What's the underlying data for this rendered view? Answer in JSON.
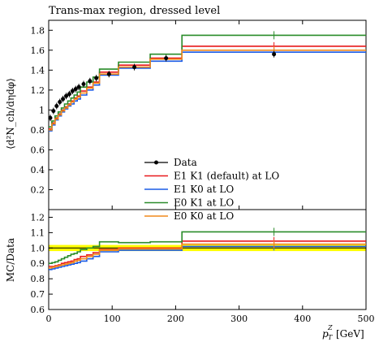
{
  "chart_data": {
    "title": "Trans-max region, dressed level",
    "type": "line",
    "x_label_main": "p",
    "x_label_sub": "T",
    "x_label_sup": "Z",
    "x_label_unit": "[GeV]",
    "y_label_top": "⟨d²N_ch/dηdφ⟩",
    "y_label_bottom": "MC/Data",
    "x_range": [
      0,
      500
    ],
    "x_ticks": [
      0,
      100,
      200,
      300,
      400,
      500
    ],
    "top_panel": {
      "ylim": [
        0,
        1.9
      ],
      "y_ticks": [
        0.2,
        0.4,
        0.6,
        0.8,
        1,
        1.2,
        1.4,
        1.6,
        1.8
      ]
    },
    "bottom_panel": {
      "ylim": [
        0.6,
        1.25
      ],
      "y_ticks": [
        0.6,
        0.7,
        0.8,
        0.9,
        1.0,
        1.1,
        1.2
      ],
      "band": [
        0.98,
        1.02
      ]
    },
    "bin_edges": [
      0,
      5,
      10,
      15,
      20,
      25,
      30,
      35,
      40,
      45,
      50,
      60,
      70,
      80,
      110,
      160,
      210,
      500
    ],
    "data": {
      "name": "Data",
      "x": [
        2.5,
        7.5,
        12.5,
        17.5,
        22.5,
        27.5,
        32.5,
        37.5,
        42.5,
        47.5,
        55,
        65,
        75,
        95,
        135,
        185,
        355
      ],
      "y": [
        0.92,
        0.99,
        1.04,
        1.08,
        1.11,
        1.14,
        1.16,
        1.19,
        1.21,
        1.23,
        1.26,
        1.29,
        1.32,
        1.36,
        1.43,
        1.52,
        1.56
      ]
    },
    "series": [
      {
        "name": "E1 K1 (default) at LO",
        "color": "#e8191c",
        "y": [
          0.81,
          0.87,
          0.92,
          0.96,
          1.0,
          1.03,
          1.06,
          1.09,
          1.12,
          1.14,
          1.19,
          1.23,
          1.28,
          1.38,
          1.45,
          1.52,
          1.64
        ],
        "ratio": [
          0.88,
          0.88,
          0.885,
          0.89,
          0.9,
          0.905,
          0.91,
          0.915,
          0.925,
          0.93,
          0.945,
          0.955,
          0.97,
          0.99,
          1.0,
          1.0,
          1.045
        ]
      },
      {
        "name": "E1 K0 at LO",
        "color": "#1a5be6",
        "y": [
          0.79,
          0.85,
          0.9,
          0.94,
          0.98,
          1.01,
          1.04,
          1.06,
          1.09,
          1.11,
          1.15,
          1.2,
          1.25,
          1.35,
          1.42,
          1.49,
          1.58
        ],
        "ratio": [
          0.86,
          0.865,
          0.87,
          0.875,
          0.88,
          0.885,
          0.89,
          0.895,
          0.9,
          0.905,
          0.915,
          0.93,
          0.945,
          0.975,
          0.985,
          0.985,
          1.01
        ]
      },
      {
        "name": "E0 K1 at LO",
        "color": "#2a8c2a",
        "y": [
          0.83,
          0.89,
          0.94,
          0.98,
          1.02,
          1.06,
          1.09,
          1.12,
          1.15,
          1.18,
          1.23,
          1.28,
          1.33,
          1.41,
          1.48,
          1.56,
          1.75
        ],
        "ratio": [
          0.9,
          0.905,
          0.91,
          0.92,
          0.93,
          0.94,
          0.95,
          0.96,
          0.965,
          0.975,
          0.99,
          1.0,
          1.01,
          1.04,
          1.035,
          1.04,
          1.105
        ]
      },
      {
        "name": "E0 K0 at LO",
        "color": "#f08a1c",
        "y": [
          0.8,
          0.86,
          0.91,
          0.95,
          0.99,
          1.02,
          1.05,
          1.08,
          1.11,
          1.13,
          1.17,
          1.22,
          1.27,
          1.36,
          1.43,
          1.51,
          1.6
        ],
        "ratio": [
          0.87,
          0.875,
          0.88,
          0.885,
          0.89,
          0.895,
          0.9,
          0.905,
          0.915,
          0.92,
          0.93,
          0.945,
          0.96,
          0.985,
          0.995,
          0.995,
          1.025
        ]
      }
    ],
    "legend_position": "lower-right",
    "band_color": "#ffff00"
  }
}
